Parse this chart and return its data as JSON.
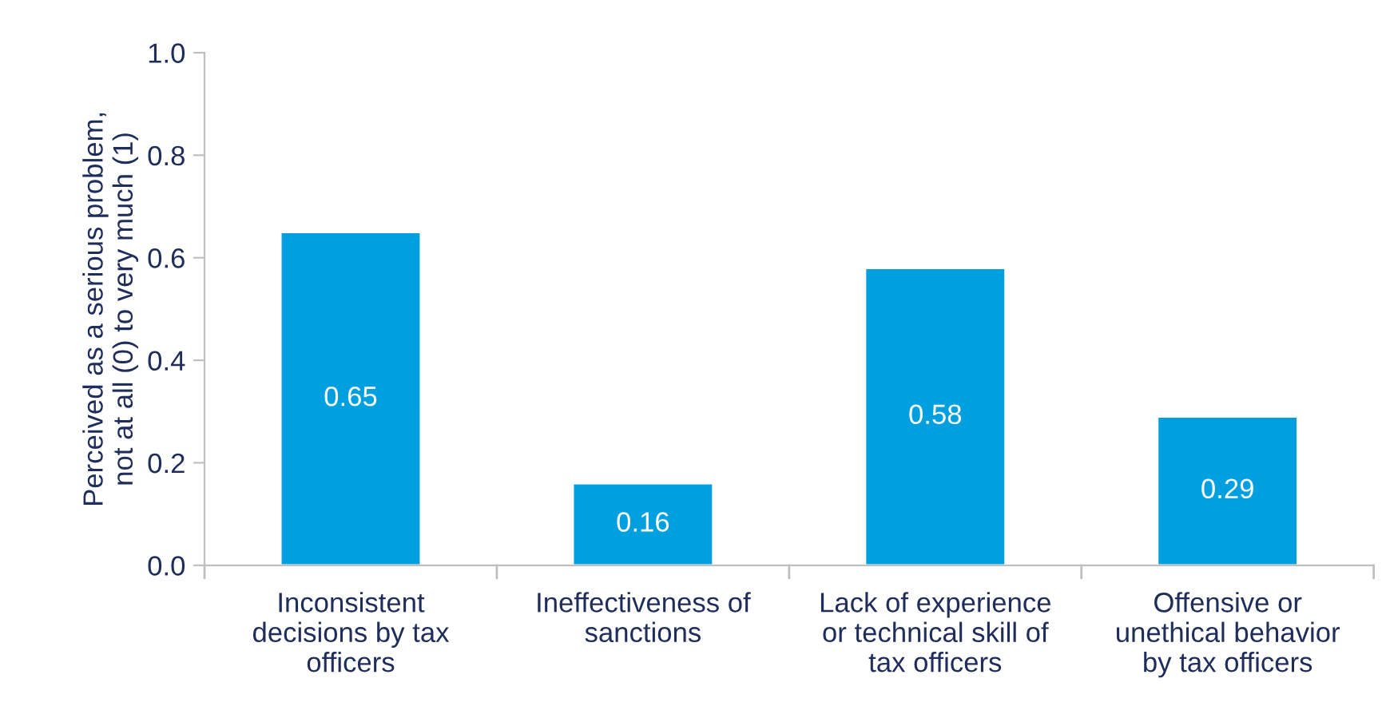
{
  "chart_data": {
    "type": "bar",
    "ylabel": "Perceived as a serious problem,\nnot at all (0) to very much (1)",
    "categories": [
      "Inconsistent\ndecisions by tax\nofficers",
      "Ineffectiveness of\nsanctions",
      "Lack of experience\nor technical skill of\ntax officers",
      "Offensive or\nunethical behavior\nby tax officers"
    ],
    "values": [
      0.65,
      0.16,
      0.58,
      0.29
    ],
    "color": "#009fdf",
    "ylim": [
      0,
      1
    ],
    "yticks": [
      {
        "value": 0,
        "label": "0.0"
      },
      {
        "value": 0.2,
        "label": "0.2"
      },
      {
        "value": 0.4,
        "label": "0.4"
      },
      {
        "value": 0.6,
        "label": "0.6"
      },
      {
        "value": 0.8,
        "label": "0.8"
      },
      {
        "value": 1,
        "label": "1.0"
      }
    ],
    "data_labels": true,
    "grid": false,
    "legend": false
  }
}
